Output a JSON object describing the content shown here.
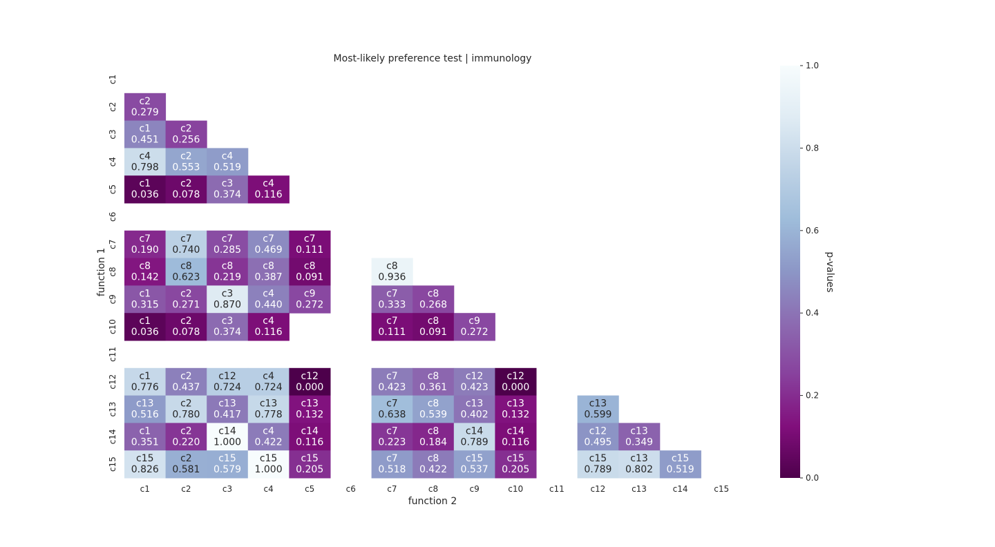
{
  "chart_data": {
    "type": "heatmap",
    "title": "Most-likely preference test | immunology",
    "xlabel": "function 2",
    "ylabel": "function 1",
    "x_categories": [
      "c1",
      "c2",
      "c3",
      "c4",
      "c5",
      "c6",
      "c7",
      "c8",
      "c9",
      "c10",
      "c11",
      "c12",
      "c13",
      "c14",
      "c15"
    ],
    "y_categories": [
      "c1",
      "c2",
      "c3",
      "c4",
      "c5",
      "c6",
      "c7",
      "c8",
      "c9",
      "c10",
      "c11",
      "c12",
      "c13",
      "c14",
      "c15"
    ],
    "colorbar": {
      "label": "p-values",
      "range": [
        0.0,
        1.0
      ],
      "ticks": [
        "0.0",
        "0.2",
        "0.4",
        "0.6",
        "0.8",
        "1.0"
      ],
      "colormap": "BuPu_r",
      "colors": [
        "#4d004b",
        "#810f7c",
        "#88419d",
        "#8c6bb1",
        "#8c96c6",
        "#9ebcda",
        "#bfd3e6",
        "#e0ecf4",
        "#f7fcfd"
      ]
    },
    "cells": [
      {
        "row": "c2",
        "col": "c1",
        "label": "c2",
        "value": 0.279
      },
      {
        "row": "c3",
        "col": "c1",
        "label": "c1",
        "value": 0.451
      },
      {
        "row": "c3",
        "col": "c2",
        "label": "c2",
        "value": 0.256
      },
      {
        "row": "c4",
        "col": "c1",
        "label": "c4",
        "value": 0.798
      },
      {
        "row": "c4",
        "col": "c2",
        "label": "c2",
        "value": 0.553
      },
      {
        "row": "c4",
        "col": "c3",
        "label": "c4",
        "value": 0.519
      },
      {
        "row": "c5",
        "col": "c1",
        "label": "c1",
        "value": 0.036
      },
      {
        "row": "c5",
        "col": "c2",
        "label": "c2",
        "value": 0.078
      },
      {
        "row": "c5",
        "col": "c3",
        "label": "c3",
        "value": 0.374
      },
      {
        "row": "c5",
        "col": "c4",
        "label": "c4",
        "value": 0.116
      },
      {
        "row": "c7",
        "col": "c1",
        "label": "c7",
        "value": 0.19
      },
      {
        "row": "c7",
        "col": "c2",
        "label": "c7",
        "value": 0.74
      },
      {
        "row": "c7",
        "col": "c3",
        "label": "c7",
        "value": 0.285
      },
      {
        "row": "c7",
        "col": "c4",
        "label": "c7",
        "value": 0.469
      },
      {
        "row": "c7",
        "col": "c5",
        "label": "c7",
        "value": 0.111
      },
      {
        "row": "c8",
        "col": "c1",
        "label": "c8",
        "value": 0.142
      },
      {
        "row": "c8",
        "col": "c2",
        "label": "c8",
        "value": 0.623
      },
      {
        "row": "c8",
        "col": "c3",
        "label": "c8",
        "value": 0.219
      },
      {
        "row": "c8",
        "col": "c4",
        "label": "c8",
        "value": 0.387
      },
      {
        "row": "c8",
        "col": "c5",
        "label": "c8",
        "value": 0.091
      },
      {
        "row": "c8",
        "col": "c7",
        "label": "c8",
        "value": 0.936
      },
      {
        "row": "c9",
        "col": "c1",
        "label": "c1",
        "value": 0.315
      },
      {
        "row": "c9",
        "col": "c2",
        "label": "c2",
        "value": 0.271
      },
      {
        "row": "c9",
        "col": "c3",
        "label": "c3",
        "value": 0.87
      },
      {
        "row": "c9",
        "col": "c4",
        "label": "c4",
        "value": 0.44
      },
      {
        "row": "c9",
        "col": "c5",
        "label": "c9",
        "value": 0.272
      },
      {
        "row": "c9",
        "col": "c7",
        "label": "c7",
        "value": 0.333
      },
      {
        "row": "c9",
        "col": "c8",
        "label": "c8",
        "value": 0.268
      },
      {
        "row": "c10",
        "col": "c1",
        "label": "c1",
        "value": 0.036
      },
      {
        "row": "c10",
        "col": "c2",
        "label": "c2",
        "value": 0.078
      },
      {
        "row": "c10",
        "col": "c3",
        "label": "c3",
        "value": 0.374
      },
      {
        "row": "c10",
        "col": "c4",
        "label": "c4",
        "value": 0.116
      },
      {
        "row": "c10",
        "col": "c7",
        "label": "c7",
        "value": 0.111
      },
      {
        "row": "c10",
        "col": "c8",
        "label": "c8",
        "value": 0.091
      },
      {
        "row": "c10",
        "col": "c9",
        "label": "c9",
        "value": 0.272
      },
      {
        "row": "c12",
        "col": "c1",
        "label": "c1",
        "value": 0.776
      },
      {
        "row": "c12",
        "col": "c2",
        "label": "c2",
        "value": 0.437
      },
      {
        "row": "c12",
        "col": "c3",
        "label": "c12",
        "value": 0.724
      },
      {
        "row": "c12",
        "col": "c4",
        "label": "c4",
        "value": 0.724
      },
      {
        "row": "c12",
        "col": "c5",
        "label": "c12",
        "value": 0.0
      },
      {
        "row": "c12",
        "col": "c7",
        "label": "c7",
        "value": 0.423
      },
      {
        "row": "c12",
        "col": "c8",
        "label": "c8",
        "value": 0.361
      },
      {
        "row": "c12",
        "col": "c9",
        "label": "c12",
        "value": 0.423
      },
      {
        "row": "c12",
        "col": "c10",
        "label": "c12",
        "value": 0.0
      },
      {
        "row": "c13",
        "col": "c1",
        "label": "c13",
        "value": 0.516
      },
      {
        "row": "c13",
        "col": "c2",
        "label": "c2",
        "value": 0.78
      },
      {
        "row": "c13",
        "col": "c3",
        "label": "c13",
        "value": 0.417
      },
      {
        "row": "c13",
        "col": "c4",
        "label": "c13",
        "value": 0.778
      },
      {
        "row": "c13",
        "col": "c5",
        "label": "c13",
        "value": 0.132
      },
      {
        "row": "c13",
        "col": "c7",
        "label": "c7",
        "value": 0.638
      },
      {
        "row": "c13",
        "col": "c8",
        "label": "c8",
        "value": 0.539
      },
      {
        "row": "c13",
        "col": "c9",
        "label": "c13",
        "value": 0.402
      },
      {
        "row": "c13",
        "col": "c10",
        "label": "c13",
        "value": 0.132
      },
      {
        "row": "c13",
        "col": "c12",
        "label": "c13",
        "value": 0.599
      },
      {
        "row": "c14",
        "col": "c1",
        "label": "c1",
        "value": 0.351
      },
      {
        "row": "c14",
        "col": "c2",
        "label": "c2",
        "value": 0.22
      },
      {
        "row": "c14",
        "col": "c3",
        "label": "c14",
        "value": 1.0
      },
      {
        "row": "c14",
        "col": "c4",
        "label": "c4",
        "value": 0.422
      },
      {
        "row": "c14",
        "col": "c5",
        "label": "c14",
        "value": 0.116
      },
      {
        "row": "c14",
        "col": "c7",
        "label": "c7",
        "value": 0.223
      },
      {
        "row": "c14",
        "col": "c8",
        "label": "c8",
        "value": 0.184
      },
      {
        "row": "c14",
        "col": "c9",
        "label": "c14",
        "value": 0.789
      },
      {
        "row": "c14",
        "col": "c10",
        "label": "c14",
        "value": 0.116
      },
      {
        "row": "c14",
        "col": "c12",
        "label": "c12",
        "value": 0.495
      },
      {
        "row": "c14",
        "col": "c13",
        "label": "c13",
        "value": 0.349
      },
      {
        "row": "c15",
        "col": "c1",
        "label": "c15",
        "value": 0.826
      },
      {
        "row": "c15",
        "col": "c2",
        "label": "c2",
        "value": 0.581
      },
      {
        "row": "c15",
        "col": "c3",
        "label": "c15",
        "value": 0.579
      },
      {
        "row": "c15",
        "col": "c4",
        "label": "c15",
        "value": 1.0
      },
      {
        "row": "c15",
        "col": "c5",
        "label": "c15",
        "value": 0.205
      },
      {
        "row": "c15",
        "col": "c7",
        "label": "c7",
        "value": 0.518
      },
      {
        "row": "c15",
        "col": "c8",
        "label": "c8",
        "value": 0.422
      },
      {
        "row": "c15",
        "col": "c9",
        "label": "c15",
        "value": 0.537
      },
      {
        "row": "c15",
        "col": "c10",
        "label": "c15",
        "value": 0.205
      },
      {
        "row": "c15",
        "col": "c12",
        "label": "c15",
        "value": 0.789
      },
      {
        "row": "c15",
        "col": "c13",
        "label": "c13",
        "value": 0.802
      },
      {
        "row": "c15",
        "col": "c14",
        "label": "c15",
        "value": 0.519
      }
    ]
  }
}
